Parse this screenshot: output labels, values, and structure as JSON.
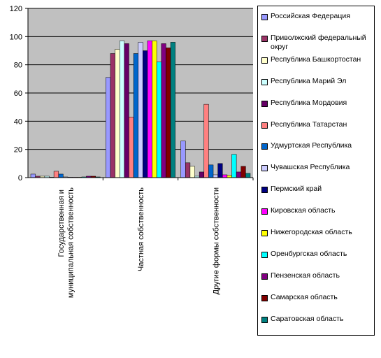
{
  "chart_data": {
    "type": "bar",
    "categories": [
      "Государственная и муниципальная собственность",
      "Частная собственность",
      "Другие формы собственности"
    ],
    "ylim": [
      0,
      120
    ],
    "yticks": [
      0,
      20,
      40,
      60,
      80,
      100,
      120
    ],
    "grid": true,
    "series": [
      {
        "name": "Российская Федерация",
        "color": "#9999ff",
        "values": [
          2.5,
          71,
          26
        ]
      },
      {
        "name": "Приволжский федеральный округ",
        "color": "#993366",
        "values": [
          1,
          88,
          10.5
        ]
      },
      {
        "name": "Республика Башкортостан",
        "color": "#ffffcc",
        "values": [
          1,
          91,
          8
        ]
      },
      {
        "name": "Республика Марий Эл",
        "color": "#ccffff",
        "values": [
          1,
          97,
          1
        ]
      },
      {
        "name": "Республика Мордовия",
        "color": "#660066",
        "values": [
          0.3,
          95,
          4
        ]
      },
      {
        "name": "Республика Татарстан",
        "color": "#ff8080",
        "values": [
          4.5,
          43,
          52
        ]
      },
      {
        "name": "Удмуртская Республика",
        "color": "#0066cc",
        "values": [
          2.5,
          88,
          9
        ]
      },
      {
        "name": "Чувашская Республика",
        "color": "#ccccff",
        "values": [
          0.5,
          96,
          2
        ]
      },
      {
        "name": "Пермский край",
        "color": "#000080",
        "values": [
          0.3,
          90,
          10
        ]
      },
      {
        "name": "Кировская область",
        "color": "#ff00ff",
        "values": [
          0.3,
          97,
          2
        ]
      },
      {
        "name": "Нижегородская область",
        "color": "#ffff00",
        "values": [
          0.3,
          97,
          1.5
        ]
      },
      {
        "name": "Оренбургская область",
        "color": "#00ffff",
        "values": [
          0.5,
          82,
          16.5
        ]
      },
      {
        "name": "Пензенская область",
        "color": "#800080",
        "values": [
          1,
          95,
          4
        ]
      },
      {
        "name": "Самарская область",
        "color": "#800000",
        "values": [
          1,
          92,
          8
        ]
      },
      {
        "name": "Саратовская область",
        "color": "#008080",
        "values": [
          0.5,
          96,
          3
        ]
      }
    ]
  }
}
